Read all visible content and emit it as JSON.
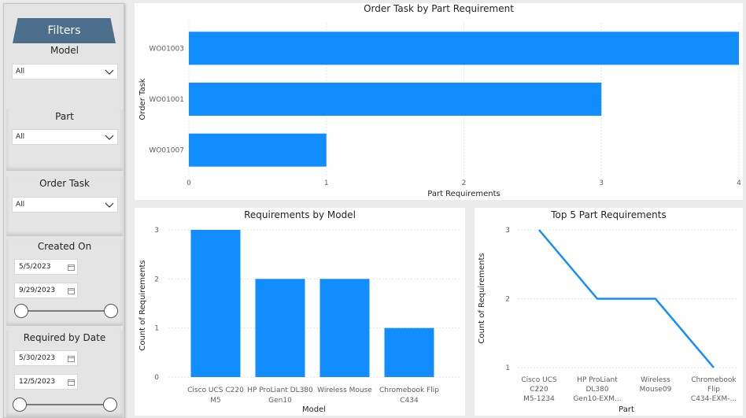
{
  "sidebar": {
    "title": "Filters",
    "model": {
      "label": "Model",
      "value": "All"
    },
    "part": {
      "label": "Part",
      "value": "All"
    },
    "order_task": {
      "label": "Order Task",
      "value": "All"
    },
    "created_on": {
      "label": "Created On",
      "start": "5/5/2023",
      "end": "9/29/2023"
    },
    "required_by": {
      "label": "Required by Date",
      "start": "5/30/2023",
      "end": "12/5/2023"
    }
  },
  "colors": {
    "bar": "#118dff",
    "grid": "#e6e6e6",
    "text": "#605e5c"
  },
  "chart_data": [
    {
      "type": "bar",
      "orientation": "horizontal",
      "title": "Order Task by Part Requirement",
      "xlabel": "Part Requirements",
      "ylabel": "Order Task",
      "categories": [
        "WO01003",
        "WO01001",
        "WO01007"
      ],
      "values": [
        4,
        3,
        1
      ],
      "xlim": [
        0,
        4
      ],
      "ticks": [
        "0",
        "1",
        "2",
        "3",
        "4"
      ],
      "grid": true
    },
    {
      "type": "bar",
      "title": "Requirements by Model",
      "xlabel": "Model",
      "ylabel": "Count of Requirements",
      "categories": [
        [
          "Cisco UCS C220",
          "M5"
        ],
        [
          "HP ProLiant DL380",
          "Gen10"
        ],
        [
          "Wireless Mouse"
        ],
        [
          "Chromebook Flip",
          "C434"
        ]
      ],
      "values": [
        3,
        2,
        2,
        1
      ],
      "ylim": [
        0,
        3
      ],
      "ticks": [
        "0",
        "1",
        "2",
        "3"
      ],
      "grid": true
    },
    {
      "type": "line",
      "title": "Top 5 Part Requirements",
      "xlabel": "Part",
      "ylabel": "Count of Requirements",
      "categories": [
        [
          "Cisco UCS",
          "C220",
          "M5-1234"
        ],
        [
          "HP ProLiant",
          "DL380",
          "Gen10-EXM..."
        ],
        [
          "Wireless",
          "Mouse09"
        ],
        [
          "Chromebook",
          "Flip",
          "C434-EXM-..."
        ]
      ],
      "values": [
        3,
        2,
        2,
        1
      ],
      "ylim": [
        1,
        3
      ],
      "ticks": [
        "1",
        "2",
        "3"
      ],
      "grid": true
    }
  ]
}
